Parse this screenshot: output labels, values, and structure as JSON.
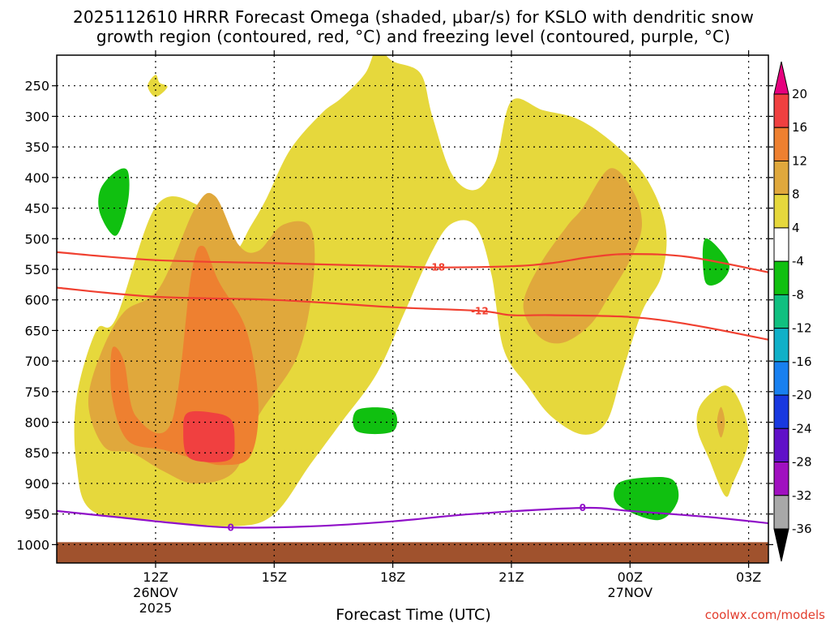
{
  "chart_data": {
    "type": "time-height cross section",
    "title_line1": "2025112610 HRRR Forecast Omega (shaded, μbar/s) for KSLO with dendritic snow",
    "title_line2": "growth region (contoured, red, °C) and freezing level (contoured, purple, °C)",
    "xlabel": "Forecast Time (UTC)",
    "ylabel": "",
    "watermark": "coolwx.com/models",
    "x_range_hours": [
      9.5,
      27.5
    ],
    "y_range_hPa": [
      200,
      1030
    ],
    "x_ticks": [
      {
        "hour": 12,
        "label": "12Z",
        "date": "26NOV",
        "year": "2025"
      },
      {
        "hour": 15,
        "label": "15Z",
        "date": "",
        "year": ""
      },
      {
        "hour": 18,
        "label": "18Z",
        "date": "",
        "year": ""
      },
      {
        "hour": 21,
        "label": "21Z",
        "date": "",
        "year": ""
      },
      {
        "hour": 24,
        "label": "00Z",
        "date": "27NOV",
        "year": ""
      },
      {
        "hour": 27,
        "label": "03Z",
        "date": "",
        "year": ""
      }
    ],
    "y_ticks": [
      250,
      300,
      350,
      400,
      450,
      500,
      550,
      600,
      650,
      700,
      750,
      800,
      850,
      900,
      950,
      1000
    ],
    "grid": true,
    "colorbar": {
      "labels": [
        "20",
        "16",
        "12",
        "8",
        "4",
        "-4",
        "-8",
        "-12",
        "-16",
        "-20",
        "-24",
        "-28",
        "-32",
        "-36"
      ],
      "bins": [
        {
          "min": 20,
          "max": null,
          "color": "#e6007e"
        },
        {
          "min": 16,
          "max": 20,
          "color": "#f04040"
        },
        {
          "min": 12,
          "max": 16,
          "color": "#ee8030"
        },
        {
          "min": 8,
          "max": 12,
          "color": "#e0a83c"
        },
        {
          "min": 4,
          "max": 8,
          "color": "#e6d83c"
        },
        {
          "min": -4,
          "max": 4,
          "color": "#ffffff"
        },
        {
          "min": -8,
          "max": -4,
          "color": "#10c010"
        },
        {
          "min": -12,
          "max": -8,
          "color": "#10c080"
        },
        {
          "min": -16,
          "max": -12,
          "color": "#10b0c8"
        },
        {
          "min": -20,
          "max": -16,
          "color": "#1880f0"
        },
        {
          "min": -24,
          "max": -20,
          "color": "#1838e0"
        },
        {
          "min": -28,
          "max": -24,
          "color": "#6010c8"
        },
        {
          "min": -32,
          "max": -28,
          "color": "#a010c0"
        },
        {
          "min": -36,
          "max": -32,
          "color": "#a8a8a8"
        },
        {
          "min": null,
          "max": -36,
          "color": "#000000"
        }
      ]
    },
    "omega_regions": [
      {
        "name": "main-updraft-plume",
        "level": 4,
        "color": "#e6d83c",
        "outline": [
          [
            11.0,
            630
          ],
          [
            12.0,
            448
          ],
          [
            13.0,
            443
          ],
          [
            13.5,
            490
          ],
          [
            14.0,
            520
          ],
          [
            14.4,
            480
          ],
          [
            14.8,
            435
          ],
          [
            15.4,
            355
          ],
          [
            16.2,
            295
          ],
          [
            16.7,
            270
          ],
          [
            17.3,
            230
          ],
          [
            17.6,
            190
          ],
          [
            18.0,
            210
          ],
          [
            18.7,
            230
          ],
          [
            19.0,
            300
          ],
          [
            19.5,
            395
          ],
          [
            20.1,
            420
          ],
          [
            20.6,
            375
          ],
          [
            21.0,
            275
          ],
          [
            21.8,
            290
          ],
          [
            22.7,
            305
          ],
          [
            23.6,
            345
          ],
          [
            24.4,
            400
          ],
          [
            24.9,
            480
          ],
          [
            24.8,
            560
          ],
          [
            24.3,
            620
          ],
          [
            23.8,
            720
          ],
          [
            23.4,
            800
          ],
          [
            22.8,
            820
          ],
          [
            22.0,
            790
          ],
          [
            21.4,
            740
          ],
          [
            20.8,
            680
          ],
          [
            20.5,
            560
          ],
          [
            20.1,
            480
          ],
          [
            19.5,
            475
          ],
          [
            19.0,
            520
          ],
          [
            18.3,
            620
          ],
          [
            17.6,
            720
          ],
          [
            16.7,
            800
          ],
          [
            15.9,
            870
          ],
          [
            15.0,
            950
          ],
          [
            14.0,
            970
          ],
          [
            12.0,
            960
          ],
          [
            10.4,
            945
          ],
          [
            10.0,
            870
          ],
          [
            10.0,
            760
          ],
          [
            10.5,
            650
          ]
        ]
      },
      {
        "name": "main-updraft-core",
        "level": 8,
        "color": "#e0a83c",
        "outline": [
          [
            10.6,
            690
          ],
          [
            11.2,
            620
          ],
          [
            12.1,
            580
          ],
          [
            13.0,
            450
          ],
          [
            13.5,
            430
          ],
          [
            14.1,
            510
          ],
          [
            14.6,
            520
          ],
          [
            15.2,
            478
          ],
          [
            15.9,
            480
          ],
          [
            16.0,
            560
          ],
          [
            15.6,
            690
          ],
          [
            14.6,
            790
          ],
          [
            14.0,
            880
          ],
          [
            13.0,
            900
          ],
          [
            12.2,
            880
          ],
          [
            11.4,
            850
          ],
          [
            10.7,
            840
          ],
          [
            10.3,
            770
          ]
        ]
      },
      {
        "name": "main-updraft-max",
        "level": 12,
        "color": "#ee8030",
        "outline": [
          [
            10.9,
            680
          ],
          [
            11.2,
            700
          ],
          [
            11.5,
            790
          ],
          [
            12.4,
            800
          ],
          [
            12.9,
            560
          ],
          [
            13.2,
            512
          ],
          [
            13.6,
            570
          ],
          [
            14.3,
            650
          ],
          [
            14.6,
            770
          ],
          [
            14.4,
            855
          ],
          [
            13.7,
            870
          ],
          [
            13.0,
            860
          ],
          [
            12.2,
            845
          ],
          [
            11.3,
            830
          ],
          [
            10.9,
            760
          ]
        ]
      },
      {
        "name": "main-updraft-peak",
        "level": 16,
        "color": "#f04040",
        "outline": [
          [
            12.8,
            785
          ],
          [
            13.4,
            784
          ],
          [
            13.9,
            795
          ],
          [
            14.0,
            830
          ],
          [
            13.9,
            860
          ],
          [
            13.3,
            865
          ],
          [
            12.8,
            855
          ],
          [
            12.7,
            815
          ]
        ]
      },
      {
        "name": "late-updraft-core",
        "level": 8,
        "color": "#e0a83c",
        "outline": [
          [
            21.3,
            610
          ],
          [
            21.7,
            545
          ],
          [
            22.4,
            480
          ],
          [
            22.8,
            450
          ],
          [
            23.5,
            385
          ],
          [
            24.1,
            425
          ],
          [
            24.3,
            480
          ],
          [
            24.0,
            535
          ],
          [
            23.5,
            590
          ],
          [
            23.0,
            640
          ],
          [
            22.3,
            670
          ],
          [
            21.7,
            660
          ]
        ]
      },
      {
        "name": "small-updraft-east",
        "level": 4,
        "color": "#e6d83c",
        "outline": [
          [
            25.8,
            770
          ],
          [
            26.4,
            740
          ],
          [
            26.8,
            770
          ],
          [
            27.0,
            830
          ],
          [
            26.6,
            900
          ],
          [
            26.4,
            920
          ],
          [
            26.0,
            860
          ],
          [
            25.7,
            810
          ]
        ]
      },
      {
        "name": "small-updraft-east-core",
        "level": 8,
        "color": "#e0a83c",
        "outline": [
          [
            26.3,
            775
          ],
          [
            26.4,
            800
          ],
          [
            26.3,
            825
          ],
          [
            26.2,
            800
          ]
        ]
      },
      {
        "name": "small-updraft-top",
        "level": 4,
        "color": "#e6d83c",
        "outline": [
          [
            11.8,
            250
          ],
          [
            12.0,
            232
          ],
          [
            12.1,
            245
          ],
          [
            12.3,
            252
          ],
          [
            12.0,
            268
          ]
        ]
      },
      {
        "name": "downdraft-west",
        "level": -4,
        "color": "#10c010",
        "outline": [
          [
            11.0,
            390
          ],
          [
            11.3,
            390
          ],
          [
            11.3,
            440
          ],
          [
            11.0,
            495
          ],
          [
            10.6,
            460
          ],
          [
            10.6,
            420
          ]
        ]
      },
      {
        "name": "downdraft-east",
        "level": -4,
        "color": "#10c010",
        "outline": [
          [
            25.9,
            500
          ],
          [
            26.5,
            540
          ],
          [
            26.3,
            570
          ],
          [
            25.9,
            570
          ]
        ]
      },
      {
        "name": "downdraft-low-mid",
        "level": -4,
        "color": "#10c010",
        "outline": [
          [
            17.1,
            780
          ],
          [
            18.0,
            780
          ],
          [
            18.0,
            815
          ],
          [
            17.1,
            815
          ]
        ]
      },
      {
        "name": "downdraft-low-east",
        "level": -4,
        "color": "#10c010",
        "outline": [
          [
            23.7,
            900
          ],
          [
            24.5,
            890
          ],
          [
            25.1,
            895
          ],
          [
            25.2,
            930
          ],
          [
            24.7,
            960
          ],
          [
            23.7,
            935
          ]
        ]
      }
    ],
    "dendritic_contours": [
      {
        "value": "-18",
        "color": "#f04030",
        "label_at_hour": 19.1,
        "points": [
          [
            9.5,
            522
          ],
          [
            12.0,
            535
          ],
          [
            15.0,
            540
          ],
          [
            18.0,
            545
          ],
          [
            19.1,
            547
          ],
          [
            21.0,
            545
          ],
          [
            22.0,
            540
          ],
          [
            23.0,
            530
          ],
          [
            24.0,
            525
          ],
          [
            25.5,
            530
          ],
          [
            27.5,
            555
          ]
        ]
      },
      {
        "value": "-12",
        "color": "#f04030",
        "label_at_hour": 20.2,
        "points": [
          [
            9.5,
            580
          ],
          [
            12.0,
            595
          ],
          [
            15.0,
            600
          ],
          [
            18.0,
            612
          ],
          [
            20.2,
            618
          ],
          [
            21.0,
            625
          ],
          [
            22.0,
            625
          ],
          [
            24.0,
            628
          ],
          [
            25.5,
            640
          ],
          [
            27.5,
            665
          ]
        ]
      }
    ],
    "freezing_level_contour": {
      "value": "0",
      "color": "#9010c8",
      "label_at_hour": 13.9,
      "label2_at_hour": 22.8,
      "points": [
        [
          9.5,
          945
        ],
        [
          11.0,
          955
        ],
        [
          12.5,
          965
        ],
        [
          13.9,
          972
        ],
        [
          16.0,
          970
        ],
        [
          18.0,
          962
        ],
        [
          20.0,
          950
        ],
        [
          22.8,
          940
        ],
        [
          24.0,
          945
        ],
        [
          26.0,
          955
        ],
        [
          27.5,
          965
        ]
      ]
    },
    "terrain_surface": {
      "color": "#a0522d",
      "top_hPa": 1000,
      "bottom_hPa": 1030
    }
  }
}
